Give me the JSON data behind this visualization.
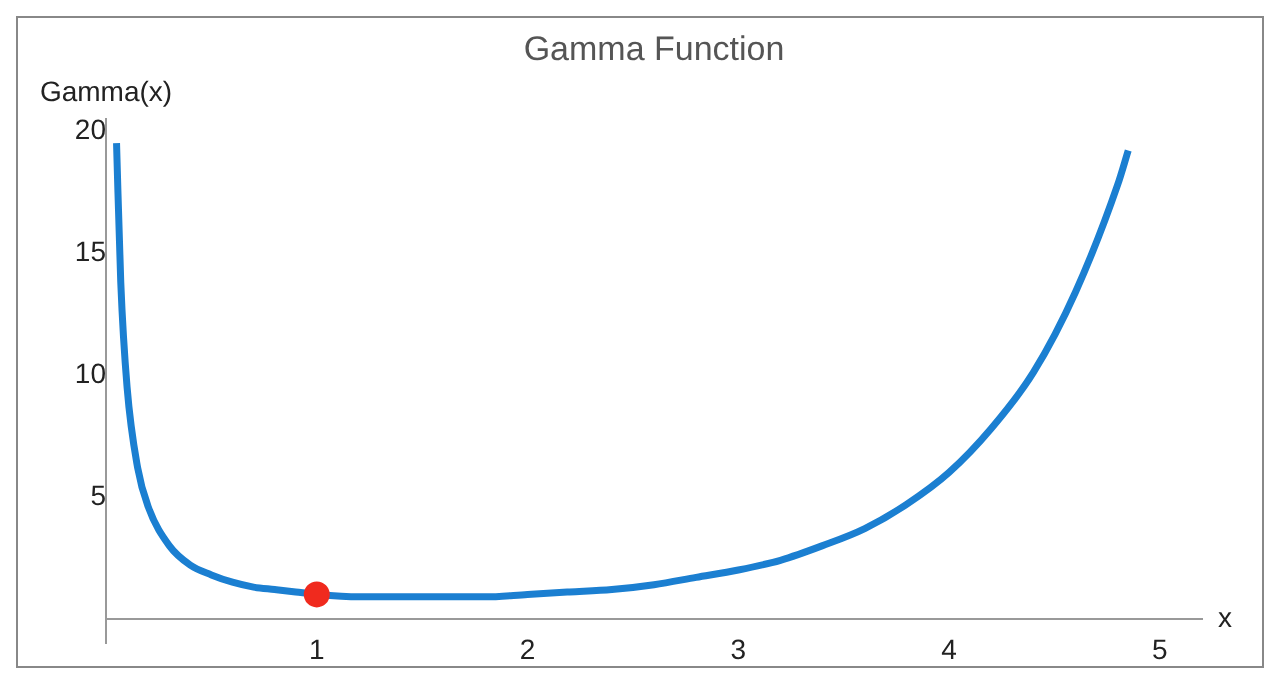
{
  "chart_data": {
    "type": "line",
    "title": "Gamma Function",
    "xlabel": "x",
    "ylabel": "Gamma(x)",
    "xlim": [
      0,
      5.2
    ],
    "xticks": [
      1,
      2,
      3,
      4,
      5
    ],
    "ylim": [
      -1,
      20.5
    ],
    "yticks": [
      5,
      10,
      15,
      20
    ],
    "grid": false,
    "legend": false,
    "marker": "none",
    "line_style": "solid",
    "series": [
      {
        "color": "#1b7fd1",
        "x": [
          0.05,
          0.07,
          0.1,
          0.15,
          0.2,
          0.3,
          0.4,
          0.5,
          0.6,
          0.7,
          0.8,
          0.9,
          1.0,
          1.2,
          1.4,
          1.5,
          1.6,
          1.8,
          2.0,
          2.2,
          2.4,
          2.6,
          2.8,
          3.0,
          3.2,
          3.4,
          3.6,
          3.8,
          4.0,
          4.2,
          4.4,
          4.6,
          4.8,
          4.85
        ],
        "values": [
          19.5,
          13.8,
          9.5,
          6.2,
          4.6,
          3.0,
          2.2,
          1.8,
          1.5,
          1.3,
          1.2,
          1.1,
          1.0,
          0.9,
          0.9,
          0.9,
          0.9,
          0.9,
          1.0,
          1.1,
          1.2,
          1.4,
          1.7,
          2.0,
          2.4,
          3.0,
          3.7,
          4.7,
          6.0,
          7.8,
          10.1,
          13.4,
          17.8,
          19.2
        ]
      },
      {
        "type": "scatter",
        "marker": "circle",
        "color": "#f02a1e",
        "x": [
          1
        ],
        "values": [
          1
        ]
      }
    ]
  }
}
